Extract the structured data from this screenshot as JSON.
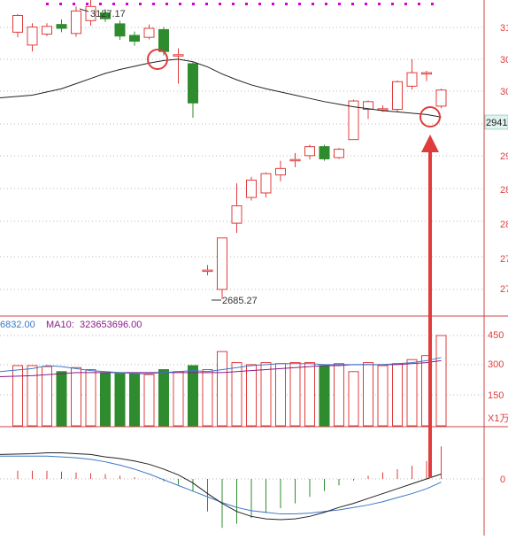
{
  "colors": {
    "up": "#e03c3c",
    "down": "#2e8b2e",
    "ma_line": "#222222",
    "vol_ma5": "#3a78c8",
    "vol_ma10": "#8b1a8b",
    "macd_dif": "#222222",
    "macd_dea": "#3a78c8",
    "grid": "#b8b8b8",
    "axis_text": "#e03c3c",
    "annotation": "#e03c3c",
    "price_tag_bg": "#dff3ef",
    "dotted_marker": "#d400d4"
  },
  "price_panel": {
    "axis_labels": [
      "31",
      "30",
      "30",
      "29",
      "28",
      "28",
      "27",
      "27"
    ],
    "current_price_tag": "2941",
    "high_label": "3127.17",
    "low_label": "2685.27"
  },
  "volume_panel": {
    "legend_ma5": "6832.00",
    "legend_ma10_prefix": "MA10:",
    "legend_ma10": "323653696.00",
    "axis_labels": [
      "450",
      "300",
      "150",
      "X1万"
    ]
  },
  "macd_panel": {
    "axis_labels": [
      "0"
    ]
  },
  "chart_data": {
    "type": "candlestick",
    "price": {
      "candles": [
        {
          "o": 3100,
          "c": 3126,
          "h": 3128,
          "l": 3092
        },
        {
          "o": 3080,
          "c": 3108,
          "h": 3114,
          "l": 3070
        },
        {
          "o": 3097,
          "c": 3109,
          "h": 3114,
          "l": 3094
        },
        {
          "o": 3112,
          "c": 3106,
          "h": 3120,
          "l": 3100
        },
        {
          "o": 3098,
          "c": 3133,
          "h": 3140,
          "l": 3093
        },
        {
          "o": 3118,
          "c": 3140,
          "h": 3155,
          "l": 3110
        },
        {
          "o": 3130,
          "c": 3121,
          "h": 3136,
          "l": 3116
        },
        {
          "o": 3113,
          "c": 3094,
          "h": 3118,
          "l": 3088
        },
        {
          "o": 3095,
          "c": 3086,
          "h": 3101,
          "l": 3079
        },
        {
          "o": 3092,
          "c": 3106,
          "h": 3112,
          "l": 3089
        },
        {
          "o": 3104,
          "c": 3070,
          "h": 3108,
          "l": 3064
        },
        {
          "o": 3065,
          "c": 3065,
          "h": 3075,
          "l": 3020
        },
        {
          "o": 3051,
          "c": 2990,
          "h": 3053,
          "l": 2967
        },
        {
          "o": 2730,
          "c": 2730,
          "h": 2738,
          "l": 2722
        },
        {
          "o": 2700,
          "c": 2780,
          "h": 2780,
          "l": 2685.27
        },
        {
          "o": 2803,
          "c": 2830,
          "h": 2865,
          "l": 2788
        },
        {
          "o": 2843,
          "c": 2870,
          "h": 2875,
          "l": 2838
        },
        {
          "o": 2850,
          "c": 2880,
          "h": 2882,
          "l": 2843
        },
        {
          "o": 2878,
          "c": 2888,
          "h": 2900,
          "l": 2868
        },
        {
          "o": 2900,
          "c": 2902,
          "h": 2912,
          "l": 2890
        },
        {
          "o": 2908,
          "c": 2922,
          "h": 2925,
          "l": 2902
        },
        {
          "o": 2922,
          "c": 2903,
          "h": 2925,
          "l": 2900
        },
        {
          "o": 2905,
          "c": 2918,
          "h": 2920,
          "l": 2903
        },
        {
          "o": 2933,
          "c": 2993,
          "h": 2995,
          "l": 2933
        },
        {
          "o": 2980,
          "c": 2992,
          "h": 2994,
          "l": 2965
        },
        {
          "o": 2981,
          "c": 2981,
          "h": 2986,
          "l": 2976
        },
        {
          "o": 2980,
          "c": 3023,
          "h": 3025,
          "l": 2976
        },
        {
          "o": 3016,
          "c": 3037,
          "h": 3058,
          "l": 3011
        },
        {
          "o": 3035,
          "c": 3037,
          "h": 3040,
          "l": 3024
        },
        {
          "o": 2985,
          "c": 3010,
          "h": 3012,
          "l": 2982
        }
      ],
      "ma_line": [
        2998,
        3002,
        3007,
        3012,
        3020,
        3028,
        3036,
        3042,
        3047,
        3052,
        3056,
        3058,
        3054,
        3046,
        3035,
        3026,
        3018,
        3012,
        3007,
        3002,
        2997,
        2992,
        2988,
        2984,
        2981,
        2978,
        2976,
        2974,
        2972,
        2968
      ]
    },
    "volume": {
      "ylim": [
        0,
        4500000
      ],
      "bars": [
        3000000,
        3000000,
        2950000,
        2700000,
        2900000,
        2800000,
        2650000,
        2600000,
        2600000,
        2550000,
        2800000,
        2700000,
        3000000,
        2800000,
        3700000,
        3150000,
        3050000,
        3150000,
        3100000,
        3150000,
        3150000,
        3000000,
        3100000,
        2700000,
        3150000,
        3000000,
        3100000,
        3300000,
        3500000,
        4500000
      ],
      "ma5": [
        2700000,
        2850000,
        3000000,
        2950000,
        2850000,
        2750000,
        2700000,
        2650000,
        2600000,
        2600000,
        2650000,
        2700000,
        2750000,
        2700000,
        2800000,
        2900000,
        3000000,
        3050000,
        3100000,
        3100000,
        3100000,
        3050000,
        3050000,
        3050000,
        3050000,
        3050000,
        3100000,
        3150000,
        3250000,
        3400000
      ],
      "ma10": [
        2450000,
        2500000,
        2550000,
        2600000,
        2650000,
        2650000,
        2650000,
        2650000,
        2650000,
        2650000,
        2650000,
        2650000,
        2650000,
        2650000,
        2650000,
        2700000,
        2750000,
        2800000,
        2850000,
        2900000,
        2950000,
        3000000,
        3000000,
        3050000,
        3050000,
        3050000,
        3050000,
        3100000,
        3150000,
        3250000
      ]
    },
    "macd": {
      "ylim": [
        -70,
        40
      ],
      "dif": [
        30,
        31,
        32,
        32,
        31,
        30,
        27,
        25,
        22,
        18,
        12,
        5,
        -5,
        -18,
        -30,
        -40,
        -46,
        -49,
        -50,
        -49,
        -46,
        -41,
        -35,
        -30,
        -24,
        -18,
        -12,
        -6,
        0,
        6
      ],
      "dea": [
        28,
        28,
        28,
        27,
        26,
        24,
        21,
        17,
        12,
        6,
        -1,
        -8,
        -15,
        -22,
        -29,
        -35,
        -39,
        -41,
        -43,
        -43,
        -42,
        -40,
        -38,
        -35,
        -32,
        -28,
        -23,
        -18,
        -12,
        -4
      ],
      "hist": [
        10,
        10,
        10,
        9,
        8,
        7,
        6,
        4,
        2,
        0,
        -3,
        -7,
        -15,
        -40,
        -60,
        -55,
        -48,
        -42,
        -36,
        -30,
        -22,
        -15,
        -8,
        -2,
        4,
        8,
        12,
        16,
        22,
        40
      ]
    }
  }
}
